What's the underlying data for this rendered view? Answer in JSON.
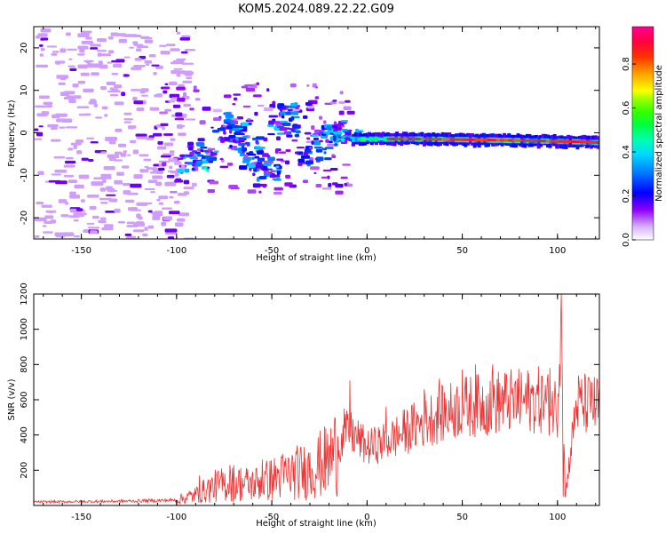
{
  "figure": {
    "title": "KOM5.2024.089.22.22.G09"
  },
  "chart_data": [
    {
      "type": "heatmap",
      "xlabel": "Height of straight line (km)",
      "ylabel": "Frequency (Hz)",
      "xlim": [
        -175,
        122
      ],
      "ylim": [
        -25,
        25
      ],
      "xticks": [
        -150,
        -100,
        -50,
        0,
        50,
        100
      ],
      "yticks": [
        20,
        10,
        0,
        -10,
        -20
      ],
      "grid": false,
      "colorbar": {
        "label": "Normalized spectral amplitude",
        "range": [
          0,
          0.97
        ],
        "ticks": [
          0.0,
          0.2,
          0.4,
          0.6,
          0.8
        ],
        "colormap": "gist_ncar",
        "colors": [
          "#ffffff",
          "#8f00ff",
          "#0000ff",
          "#00c8ff",
          "#00ff60",
          "#33ff00",
          "#ffff00",
          "#ff8000",
          "#ff0000",
          "#ff00a0"
        ]
      },
      "ridge": [
        {
          "x": -5,
          "f": -1.5
        },
        {
          "x": 20,
          "f": -1.4
        },
        {
          "x": 50,
          "f": -1.6
        },
        {
          "x": 80,
          "f": -1.8
        },
        {
          "x": 110,
          "f": -2.1
        },
        {
          "x": 122,
          "f": -2.3
        }
      ],
      "clusters": [
        {
          "x": -92,
          "f": -7.0,
          "amp": 0.35
        },
        {
          "x": -88,
          "f": -4.0,
          "amp": 0.3
        },
        {
          "x": -75,
          "f": 0.0,
          "amp": 0.3
        },
        {
          "x": -70,
          "f": 3.0,
          "amp": 0.35
        },
        {
          "x": -65,
          "f": -2.5,
          "amp": 0.3
        },
        {
          "x": -60,
          "f": -6.0,
          "amp": 0.25
        },
        {
          "x": -55,
          "f": -9.0,
          "amp": 0.3
        },
        {
          "x": -45,
          "f": 1.5,
          "amp": 0.3
        },
        {
          "x": -40,
          "f": 5.5,
          "amp": 0.3
        },
        {
          "x": -30,
          "f": -5.0,
          "amp": 0.25
        },
        {
          "x": -25,
          "f": 0.0,
          "amp": 0.35
        },
        {
          "x": -20,
          "f": 1.0,
          "amp": 0.3
        },
        {
          "x": -10,
          "f": -0.5,
          "amp": 0.35
        }
      ]
    },
    {
      "type": "line",
      "xlabel": "Height of straight line (km)",
      "ylabel": "SNR (v/v)",
      "xlim": [
        -175,
        122
      ],
      "ylim": [
        0,
        1200
      ],
      "xticks": [
        -150,
        -100,
        -50,
        0,
        50,
        100
      ],
      "yticks": [
        200,
        400,
        600,
        800,
        1000,
        1200
      ],
      "grid": false,
      "series": [
        {
          "color": "#ee3333",
          "x": [
            -175,
            -150,
            -125,
            -100,
            -90,
            -80,
            -70,
            -60,
            -50,
            -40,
            -30,
            -20,
            -15,
            -10,
            -5,
            0,
            10,
            20,
            30,
            40,
            50,
            60,
            70,
            80,
            90,
            100,
            102,
            104,
            110,
            122
          ],
          "y": [
            20,
            22,
            25,
            30,
            60,
            110,
            130,
            120,
            150,
            180,
            200,
            260,
            330,
            420,
            380,
            330,
            360,
            420,
            480,
            520,
            560,
            570,
            590,
            590,
            600,
            560,
            1200,
            50,
            580,
            560
          ],
          "spikes": [
            {
              "x": -88,
              "y": 170
            },
            {
              "x": -72,
              "y": 230
            },
            {
              "x": -55,
              "y": 260
            },
            {
              "x": -30,
              "y": 300
            },
            {
              "x": -20,
              "y": 330
            },
            {
              "x": -12,
              "y": 550
            },
            {
              "x": -9,
              "y": 710
            },
            {
              "x": 10,
              "y": 560
            },
            {
              "x": 30,
              "y": 660
            },
            {
              "x": 38,
              "y": 720
            },
            {
              "x": 50,
              "y": 770
            },
            {
              "x": 57,
              "y": 800
            },
            {
              "x": 66,
              "y": 800
            },
            {
              "x": 79,
              "y": 720
            },
            {
              "x": 96,
              "y": 780
            },
            {
              "x": 102,
              "y": 1200
            },
            {
              "x": 103,
              "y": 50
            },
            {
              "x": 118,
              "y": 700
            }
          ]
        }
      ]
    }
  ]
}
